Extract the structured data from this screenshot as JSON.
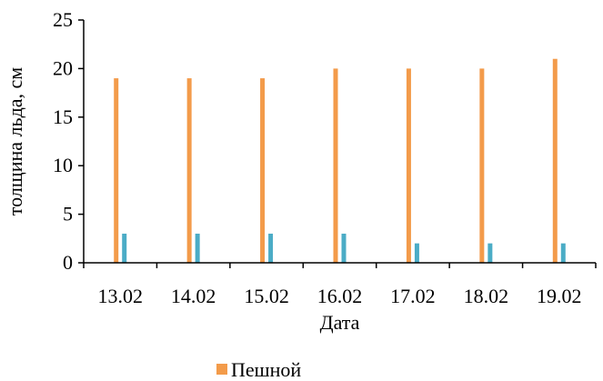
{
  "chart_data": {
    "type": "bar",
    "xlabel": "Дата",
    "ylabel": "толщина льда, см",
    "ylim": [
      0,
      25
    ],
    "yticks": [
      "0",
      "5",
      "10",
      "15",
      "20",
      "25"
    ],
    "categories": [
      "13.02",
      "14.02",
      "15.02",
      "16.02",
      "17.02",
      "18.02",
      "19.02"
    ],
    "series": [
      {
        "name": "Пешной",
        "values": [
          19,
          19,
          19,
          20,
          20,
          20,
          21
        ],
        "color": "#f39b4a"
      },
      {
        "values": [
          3,
          3,
          3,
          3,
          2,
          2,
          2
        ],
        "color": "#4bacc6"
      }
    ],
    "legend": {
      "position": "bottom",
      "entries": [
        "Пешной"
      ]
    },
    "grid": false
  }
}
